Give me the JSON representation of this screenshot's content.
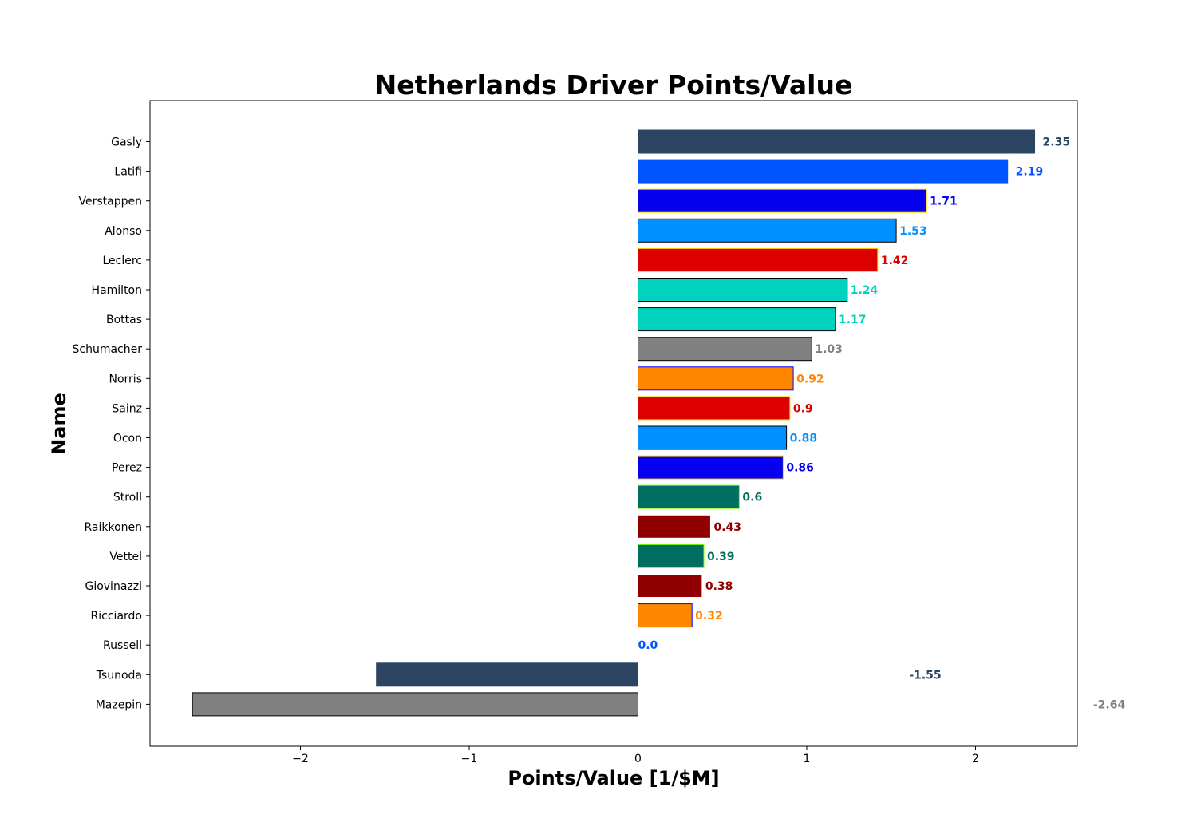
{
  "chart_data": {
    "type": "bar",
    "orientation": "horizontal",
    "title": "Netherlands Driver Points/Value",
    "xlabel": "Points/Value [1/$M]",
    "ylabel": "Name",
    "xlim": [
      -2.9,
      2.6
    ],
    "xticks": [
      -2,
      -1,
      0,
      1,
      2
    ],
    "xtick_labels": [
      "−2",
      "−1",
      "0",
      "1",
      "2"
    ],
    "grid": false,
    "bars": [
      {
        "name": "Gasly",
        "value": 2.35,
        "label": "2.35",
        "color": "#2b4562",
        "edge": "#2b4562",
        "label_color": "#2b4562"
      },
      {
        "name": "Latifi",
        "value": 2.19,
        "label": "2.19",
        "color": "#0055ff",
        "edge": "#0055ff",
        "label_color": "#0055ff"
      },
      {
        "name": "Verstappen",
        "value": 1.71,
        "label": "1.71",
        "color": "#0600ef",
        "edge": "#ffd700",
        "label_color": "#0600ef"
      },
      {
        "name": "Alonso",
        "value": 1.53,
        "label": "1.53",
        "color": "#0090ff",
        "edge": "#000000",
        "label_color": "#0090ff"
      },
      {
        "name": "Leclerc",
        "value": 1.42,
        "label": "1.42",
        "color": "#dc0000",
        "edge": "#ffd700",
        "label_color": "#dc0000"
      },
      {
        "name": "Hamilton",
        "value": 1.24,
        "label": "1.24",
        "color": "#00d2be",
        "edge": "#000000",
        "label_color": "#00d2be"
      },
      {
        "name": "Bottas",
        "value": 1.17,
        "label": "1.17",
        "color": "#00d2be",
        "edge": "#000000",
        "label_color": "#00d2be"
      },
      {
        "name": "Schumacher",
        "value": 1.03,
        "label": "1.03",
        "color": "#808080",
        "edge": "#000000",
        "label_color": "#808080"
      },
      {
        "name": "Norris",
        "value": 0.92,
        "label": "0.92",
        "color": "#ff8700",
        "edge": "#0000ff",
        "label_color": "#ff8700"
      },
      {
        "name": "Sainz",
        "value": 0.9,
        "label": "0.9",
        "color": "#dc0000",
        "edge": "#ffd700",
        "label_color": "#dc0000"
      },
      {
        "name": "Ocon",
        "value": 0.88,
        "label": "0.88",
        "color": "#0090ff",
        "edge": "#000000",
        "label_color": "#0090ff"
      },
      {
        "name": "Perez",
        "value": 0.86,
        "label": "0.86",
        "color": "#0600ef",
        "edge": "#ffd700",
        "label_color": "#0600ef"
      },
      {
        "name": "Stroll",
        "value": 0.6,
        "label": "0.6",
        "color": "#006f62",
        "edge": "#7fff00",
        "label_color": "#006f62"
      },
      {
        "name": "Raikkonen",
        "value": 0.43,
        "label": "0.43",
        "color": "#900000",
        "edge": "#ffffff",
        "label_color": "#900000"
      },
      {
        "name": "Vettel",
        "value": 0.39,
        "label": "0.39",
        "color": "#006f62",
        "edge": "#7fff00",
        "label_color": "#006f62"
      },
      {
        "name": "Giovinazzi",
        "value": 0.38,
        "label": "0.38",
        "color": "#900000",
        "edge": "#ffffff",
        "label_color": "#900000"
      },
      {
        "name": "Ricciardo",
        "value": 0.32,
        "label": "0.32",
        "color": "#ff8700",
        "edge": "#0000ff",
        "label_color": "#ff8700"
      },
      {
        "name": "Russell",
        "value": 0.0,
        "label": "0.0",
        "color": "#0055ff",
        "edge": "#0055ff",
        "label_color": "#0055ff"
      },
      {
        "name": "Tsunoda",
        "value": -1.55,
        "label": "-1.55",
        "color": "#2b4562",
        "edge": "#2b4562",
        "label_color": "#2b4562"
      },
      {
        "name": "Mazepin",
        "value": -2.64,
        "label": "-2.64",
        "color": "#808080",
        "edge": "#000000",
        "label_color": "#808080"
      }
    ]
  }
}
